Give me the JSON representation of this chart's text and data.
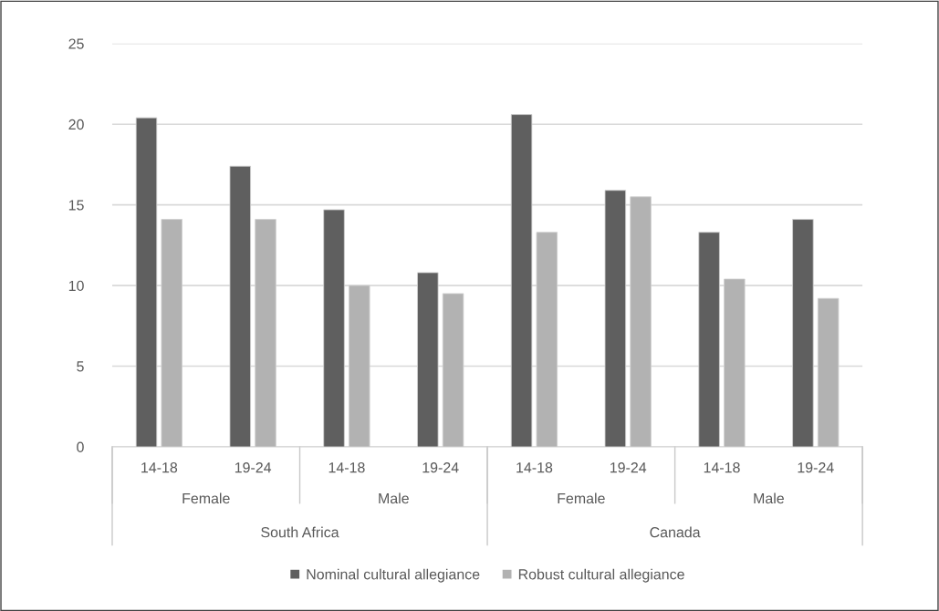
{
  "chart_data": {
    "type": "bar",
    "categories": [
      "14-18",
      "19-24",
      "14-18",
      "19-24",
      "14-18",
      "19-24",
      "14-18",
      "19-24"
    ],
    "series": [
      {
        "name": "Nominal cultural allegiance",
        "color": "#5f5f5f",
        "values": [
          20.4,
          17.4,
          14.7,
          10.8,
          20.6,
          15.9,
          13.3,
          14.1
        ]
      },
      {
        "name": "Robust cultural allegiance",
        "color": "#b2b2b2",
        "values": [
          14.1,
          14.1,
          10.0,
          9.5,
          13.3,
          15.5,
          10.4,
          9.2
        ]
      }
    ],
    "annotations": [
      "Female",
      "Male",
      "Female",
      "Male",
      "South Africa",
      "Canada"
    ],
    "ylim": [
      0,
      25
    ],
    "yticks": [
      0,
      5,
      10,
      15,
      20,
      25
    ],
    "grid": "y",
    "legend": "bottom"
  }
}
